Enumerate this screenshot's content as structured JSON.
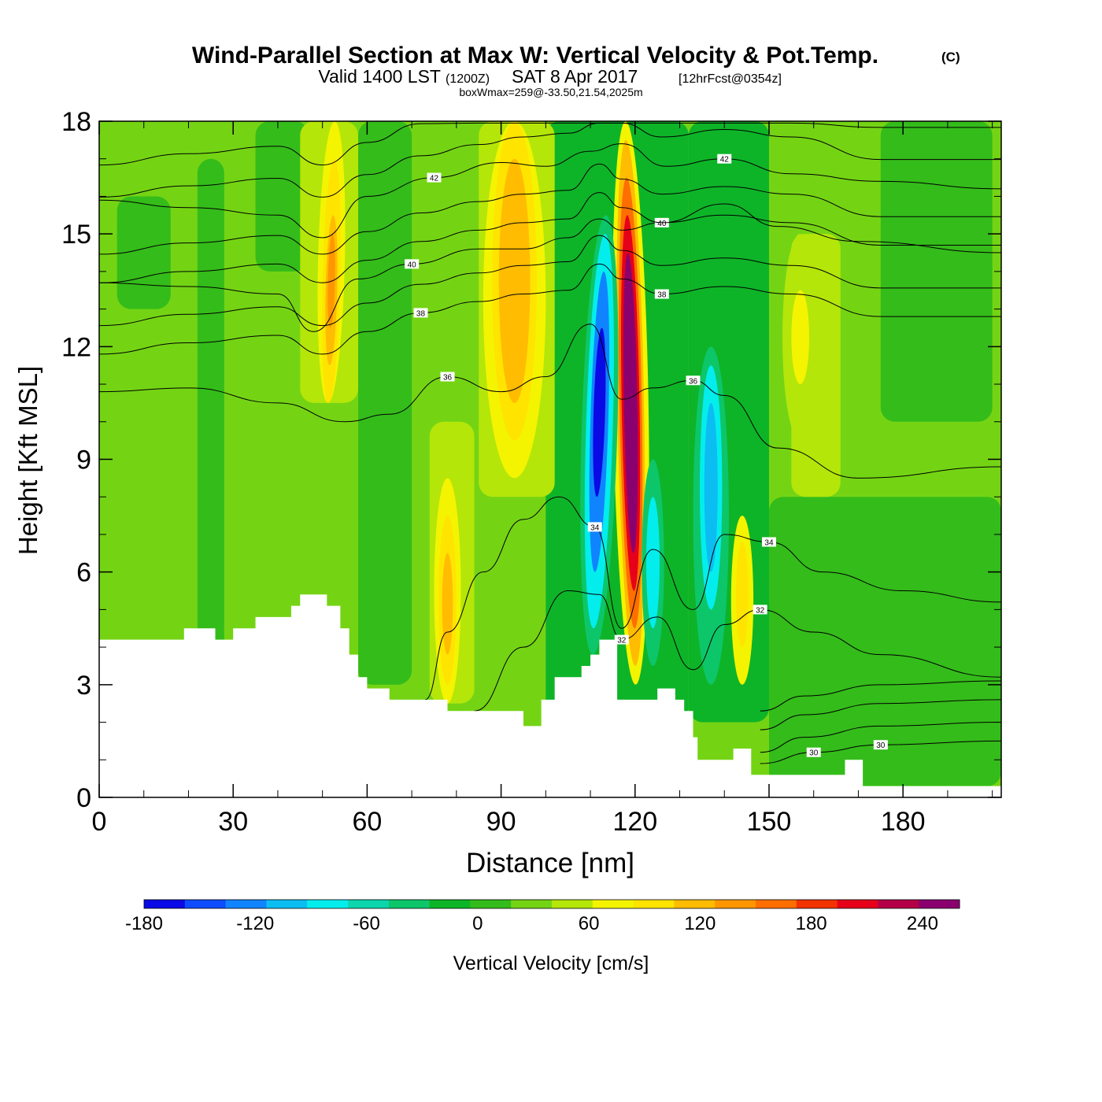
{
  "header": {
    "title": "Wind-Parallel Section at Max W: Vertical Velocity & Pot.Temp.",
    "copyright": "(C)",
    "valid_prefix": "Valid 1400 LST",
    "valid_utc": "(1200Z)",
    "valid_date": "SAT 8 Apr 2017",
    "forecast": "[12hrFcst@0354z]",
    "boxwmax": "boxWmax=259@-33.50,21.54,2025m"
  },
  "chart_data": {
    "type": "heatmap",
    "xlabel": "Distance [nm]",
    "ylabel": "Height [Kft MSL]",
    "xlim": [
      0,
      202
    ],
    "ylim": [
      0,
      18
    ],
    "x_ticks": [
      0,
      30,
      60,
      90,
      120,
      150,
      180
    ],
    "x_tick_labels": [
      "0",
      "30",
      "60",
      "90",
      "120",
      "150",
      "180"
    ],
    "y_ticks": [
      0,
      3,
      6,
      9,
      12,
      15,
      18
    ],
    "y_tick_labels": [
      "0",
      "3",
      "6",
      "9",
      "12",
      "15",
      "18"
    ],
    "colorbar": {
      "label": "Vertical Velocity [cm/s]",
      "min": -180,
      "max": 260,
      "step": 20,
      "tick_values": [
        -180,
        -120,
        -60,
        0,
        60,
        120,
        180,
        240
      ],
      "tick_labels": [
        "-180",
        "-120",
        "-60",
        "0",
        "60",
        "120",
        "180",
        "240"
      ],
      "colors": [
        "#0a0ae6",
        "#0f4cff",
        "#1084ff",
        "#0cbdf2",
        "#04eded",
        "#0cd6ad",
        "#0dc66a",
        "#0eb428",
        "#34bc1a",
        "#74d414",
        "#b4e60a",
        "#f4f400",
        "#ffe400",
        "#ffbc00",
        "#ff9600",
        "#ff6e00",
        "#f23200",
        "#e6001a",
        "#b40046",
        "#8a006e"
      ]
    },
    "updraft_cores": [
      {
        "x": 52,
        "peak_cm_s": 120
      },
      {
        "x": 78,
        "peak_cm_s": 80
      },
      {
        "x": 93,
        "peak_cm_s": 80
      },
      {
        "x": 118,
        "peak_cm_s": 259
      },
      {
        "x": 144,
        "peak_cm_s": 60
      },
      {
        "x": 156,
        "peak_cm_s": 40
      }
    ],
    "downdraft_cores": [
      {
        "x": 111,
        "min_cm_s": -180
      },
      {
        "x": 123,
        "min_cm_s": -100
      },
      {
        "x": 137,
        "min_cm_s": -100
      }
    ],
    "terrain_profile": {
      "x": [
        0,
        19,
        19,
        26,
        26,
        30,
        30,
        35,
        35,
        43,
        43,
        45,
        45,
        51,
        51,
        54,
        54,
        56,
        56,
        58,
        58,
        60,
        60,
        65,
        65,
        78,
        78,
        95,
        95,
        99,
        99,
        102,
        102,
        108,
        108,
        110,
        110,
        112,
        112,
        116,
        116,
        125,
        125,
        129,
        129,
        131,
        131,
        133,
        133,
        134,
        134,
        142,
        142,
        146,
        146,
        149,
        149,
        167,
        167,
        171,
        171,
        173,
        173,
        202
      ],
      "z": [
        4.2,
        4.2,
        4.5,
        4.5,
        4.2,
        4.2,
        4.5,
        4.5,
        4.8,
        4.8,
        5.1,
        5.1,
        5.4,
        5.4,
        5.1,
        5.1,
        4.5,
        4.5,
        3.8,
        3.8,
        3.2,
        3.2,
        2.9,
        2.9,
        2.6,
        2.6,
        2.3,
        2.3,
        1.9,
        1.9,
        2.6,
        2.6,
        3.2,
        3.2,
        3.5,
        3.5,
        3.8,
        3.8,
        4.2,
        4.2,
        2.6,
        2.6,
        2.9,
        2.9,
        2.6,
        2.6,
        2.3,
        2.3,
        1.6,
        1.6,
        1.0,
        1.0,
        1.3,
        1.3,
        0.6,
        0.6,
        0.6,
        0.6,
        1.0,
        1.0,
        0.3,
        0.3,
        0.3,
        0.3
      ]
    },
    "theta_contours": [
      {
        "label": "30",
        "x": [
          148,
          160,
          175,
          202
        ],
        "z": [
          0.9,
          1.2,
          1.4,
          1.5
        ]
      },
      {
        "label": "32",
        "x": [
          84,
          95,
          105,
          112,
          117,
          125,
          133,
          140,
          148,
          160,
          175,
          202
        ],
        "z": [
          2.3,
          4.0,
          5.5,
          5.4,
          4.2,
          4.8,
          3.4,
          4.6,
          5.0,
          4.4,
          3.8,
          3.2
        ]
      },
      {
        "label": "34",
        "x": [
          73,
          78,
          86,
          95,
          103,
          111,
          117,
          124,
          133,
          140,
          150,
          162,
          180,
          202
        ],
        "z": [
          2.6,
          4.4,
          6.0,
          7.4,
          8.0,
          7.2,
          4.5,
          6.6,
          5.0,
          7.0,
          6.8,
          6.0,
          5.5,
          5.2
        ]
      },
      {
        "label": "36",
        "x": [
          0,
          20,
          40,
          55,
          65,
          78,
          90,
          100,
          110,
          117,
          124,
          133,
          140,
          152,
          170,
          202
        ],
        "z": [
          10.8,
          10.9,
          10.5,
          10.0,
          10.2,
          11.2,
          10.8,
          11.2,
          12.6,
          10.6,
          10.9,
          11.1,
          10.7,
          9.3,
          8.5,
          8.8
        ]
      },
      {
        "label": "38",
        "x": [
          0,
          20,
          40,
          50,
          60,
          72,
          85,
          95,
          105,
          112,
          117,
          126,
          140,
          155,
          175,
          202
        ],
        "z": [
          11.8,
          12.1,
          12.3,
          11.8,
          12.4,
          12.9,
          13.2,
          13.4,
          13.5,
          14.2,
          13.8,
          13.4,
          13.6,
          13.4,
          12.8,
          12.8
        ]
      },
      {
        "label": "40",
        "x": [
          0,
          20,
          40,
          48,
          58,
          70,
          85,
          95,
          105,
          112,
          117,
          126,
          140,
          152,
          170,
          202
        ],
        "z": [
          13.7,
          13.6,
          13.4,
          12.4,
          13.8,
          14.2,
          14.6,
          14.6,
          14.9,
          15.4,
          15.1,
          15.3,
          15.8,
          15.2,
          14.8,
          14.5
        ]
      },
      {
        "label": "42",
        "x": [
          0,
          20,
          40,
          50,
          60,
          75,
          90,
          100,
          110,
          117,
          127,
          140,
          155,
          175,
          202
        ],
        "z": [
          15.9,
          15.7,
          15.5,
          14.9,
          16.0,
          16.5,
          16.9,
          16.8,
          17.2,
          17.4,
          16.8,
          17.0,
          16.6,
          16.4,
          16.2
        ]
      }
    ]
  }
}
